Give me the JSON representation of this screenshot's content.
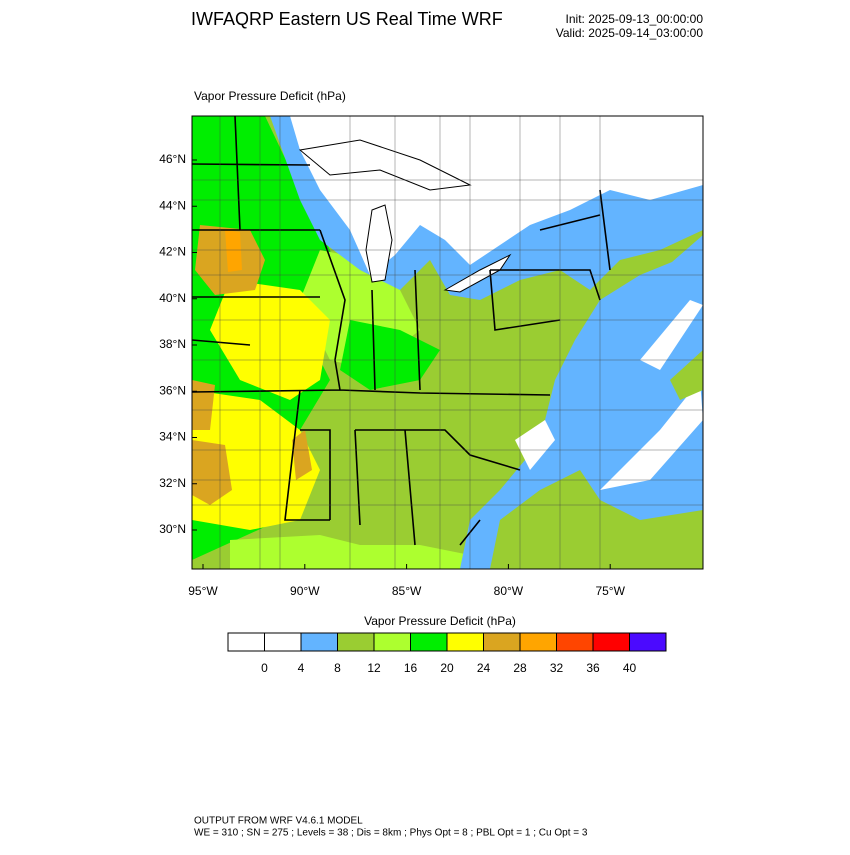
{
  "header": {
    "title": "IWFAQRP Eastern US Real Time WRF",
    "init": "Init: 2025-09-13_00:00:00",
    "valid": "Valid: 2025-09-14_03:00:00"
  },
  "map": {
    "field_label": "Vapor Pressure Deficit   (hPa)",
    "lat_labels": [
      "46°N",
      "44°N",
      "42°N",
      "40°N",
      "38°N",
      "36°N",
      "34°N",
      "32°N",
      "30°N"
    ],
    "lon_labels": [
      "95°W",
      "90°W",
      "85°W",
      "80°W",
      "75°W"
    ]
  },
  "colorbar": {
    "title": "Vapor Pressure Deficit  (hPa)",
    "levels": [
      0,
      4,
      8,
      12,
      16,
      20,
      24,
      28,
      32,
      36,
      40
    ],
    "colors": [
      "#ffffff",
      "#ffffff",
      "#63b4ff",
      "#9acd32",
      "#adff2f",
      "#00ee00",
      "#ffff00",
      "#daa520",
      "#ffa500",
      "#ff4500",
      "#ff0000",
      "#4b0aff"
    ]
  },
  "footer": {
    "line1": "OUTPUT FROM WRF V4.6.1 MODEL",
    "line2": "WE = 310 ; SN = 275 ; Levels = 38 ; Dis = 8km ; Phys Opt = 8 ; PBL Opt = 1 ; Cu Opt = 3"
  }
}
